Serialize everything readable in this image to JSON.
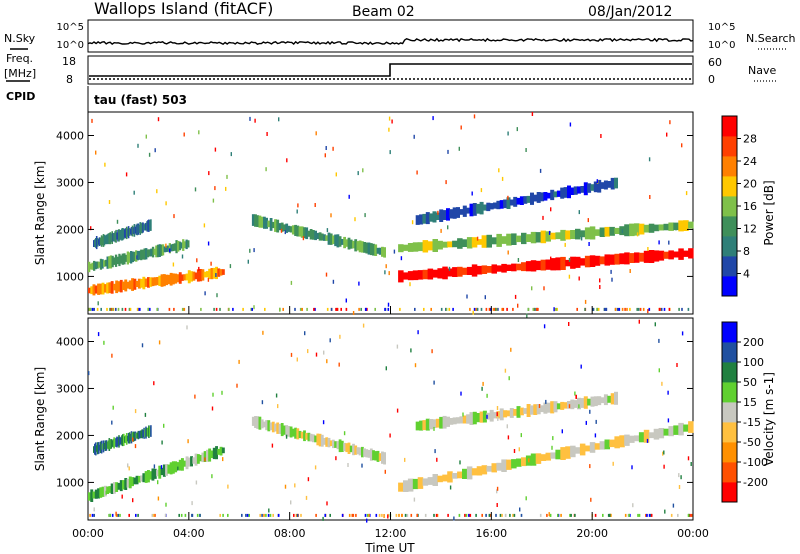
{
  "header": {
    "site": "Wallops Island (fitACF)",
    "beam": "Beam 02",
    "date": "08/Jan/2012"
  },
  "summary_panels": {
    "nsky_label": "N.Sky",
    "nsky_ticks": [
      "10^5",
      "10^0"
    ],
    "nsearch_label": "N.Search",
    "nsearch_ticks": [
      "10^5",
      "10^0"
    ],
    "freq_label_1": "Freq.",
    "freq_label_2": "[MHz]",
    "freq_ticks": [
      "18",
      "8"
    ],
    "nave_label": "Nave",
    "nave_ticks": [
      "60",
      "0"
    ],
    "cpid_label": "CPID",
    "cpid_value": "tau (fast) 503"
  },
  "colors": {
    "power_scale": [
      "#0000ff",
      "#2047a8",
      "#2f7f78",
      "#3f8f5a",
      "#7fc04a",
      "#ffc800",
      "#ff8000",
      "#ff4000",
      "#ff0000"
    ],
    "velocity_scale": [
      "#ff0000",
      "#ff5000",
      "#ff9000",
      "#ffc040",
      "#c8c8c0",
      "#60d030",
      "#208040",
      "#2050a0",
      "#0000ff"
    ]
  },
  "chart_data": [
    {
      "type": "heatmap",
      "name": "power",
      "ylabel": "Slant Range [km]",
      "xlabel": "",
      "y_ticks": [
        "4000",
        "3000",
        "2000",
        "1000"
      ],
      "ylim": [
        200,
        4500
      ],
      "colorbar_label": "Power [dB]",
      "colorbar_ticks": [
        "28",
        "24",
        "20",
        "16",
        "12",
        "8",
        "4"
      ],
      "features": [
        {
          "t_start": 0.0,
          "t_end": 5.4,
          "r_start": 700,
          "r_end": 1100,
          "level": 6
        },
        {
          "t_start": 0.0,
          "t_end": 4.0,
          "r_start": 1200,
          "r_end": 1700,
          "level": 3
        },
        {
          "t_start": 0.2,
          "t_end": 2.5,
          "r_start": 1700,
          "r_end": 2100,
          "level": 2
        },
        {
          "t_start": 6.5,
          "t_end": 11.8,
          "r_start": 2200,
          "r_end": 1500,
          "level": 3
        },
        {
          "t_start": 12.3,
          "t_end": 24.0,
          "r_start": 1000,
          "r_end": 1500,
          "level": 8
        },
        {
          "t_start": 12.3,
          "t_end": 24.0,
          "r_start": 1600,
          "r_end": 2100,
          "level": 4
        },
        {
          "t_start": 13.0,
          "t_end": 21.0,
          "r_start": 2200,
          "r_end": 3000,
          "level": 1
        }
      ]
    },
    {
      "type": "heatmap",
      "name": "velocity",
      "ylabel": "Slant Range [km]",
      "xlabel": "Time UT",
      "x_ticks": [
        "00:00",
        "04:00",
        "08:00",
        "12:00",
        "16:00",
        "20:00",
        "00:00"
      ],
      "y_ticks": [
        "4000",
        "3000",
        "2000",
        "1000"
      ],
      "ylim": [
        200,
        4500
      ],
      "colorbar_label": "Velocity [m s-1]",
      "colorbar_ticks": [
        "200",
        "100",
        "50",
        "15",
        "-15",
        "-50",
        "-100",
        "-200"
      ],
      "features": [
        {
          "t_start": 0.0,
          "t_end": 5.4,
          "r_start": 700,
          "r_end": 1700,
          "level": 5
        },
        {
          "t_start": 0.2,
          "t_end": 2.5,
          "r_start": 1700,
          "r_end": 2100,
          "level": 6
        },
        {
          "t_start": 6.5,
          "t_end": 11.8,
          "r_start": 2300,
          "r_end": 1500,
          "level": 4
        },
        {
          "t_start": 12.3,
          "t_end": 24.0,
          "r_start": 900,
          "r_end": 2200,
          "level": 4
        },
        {
          "t_start": 13.0,
          "t_end": 21.0,
          "r_start": 2200,
          "r_end": 2800,
          "level": 4
        }
      ]
    }
  ]
}
